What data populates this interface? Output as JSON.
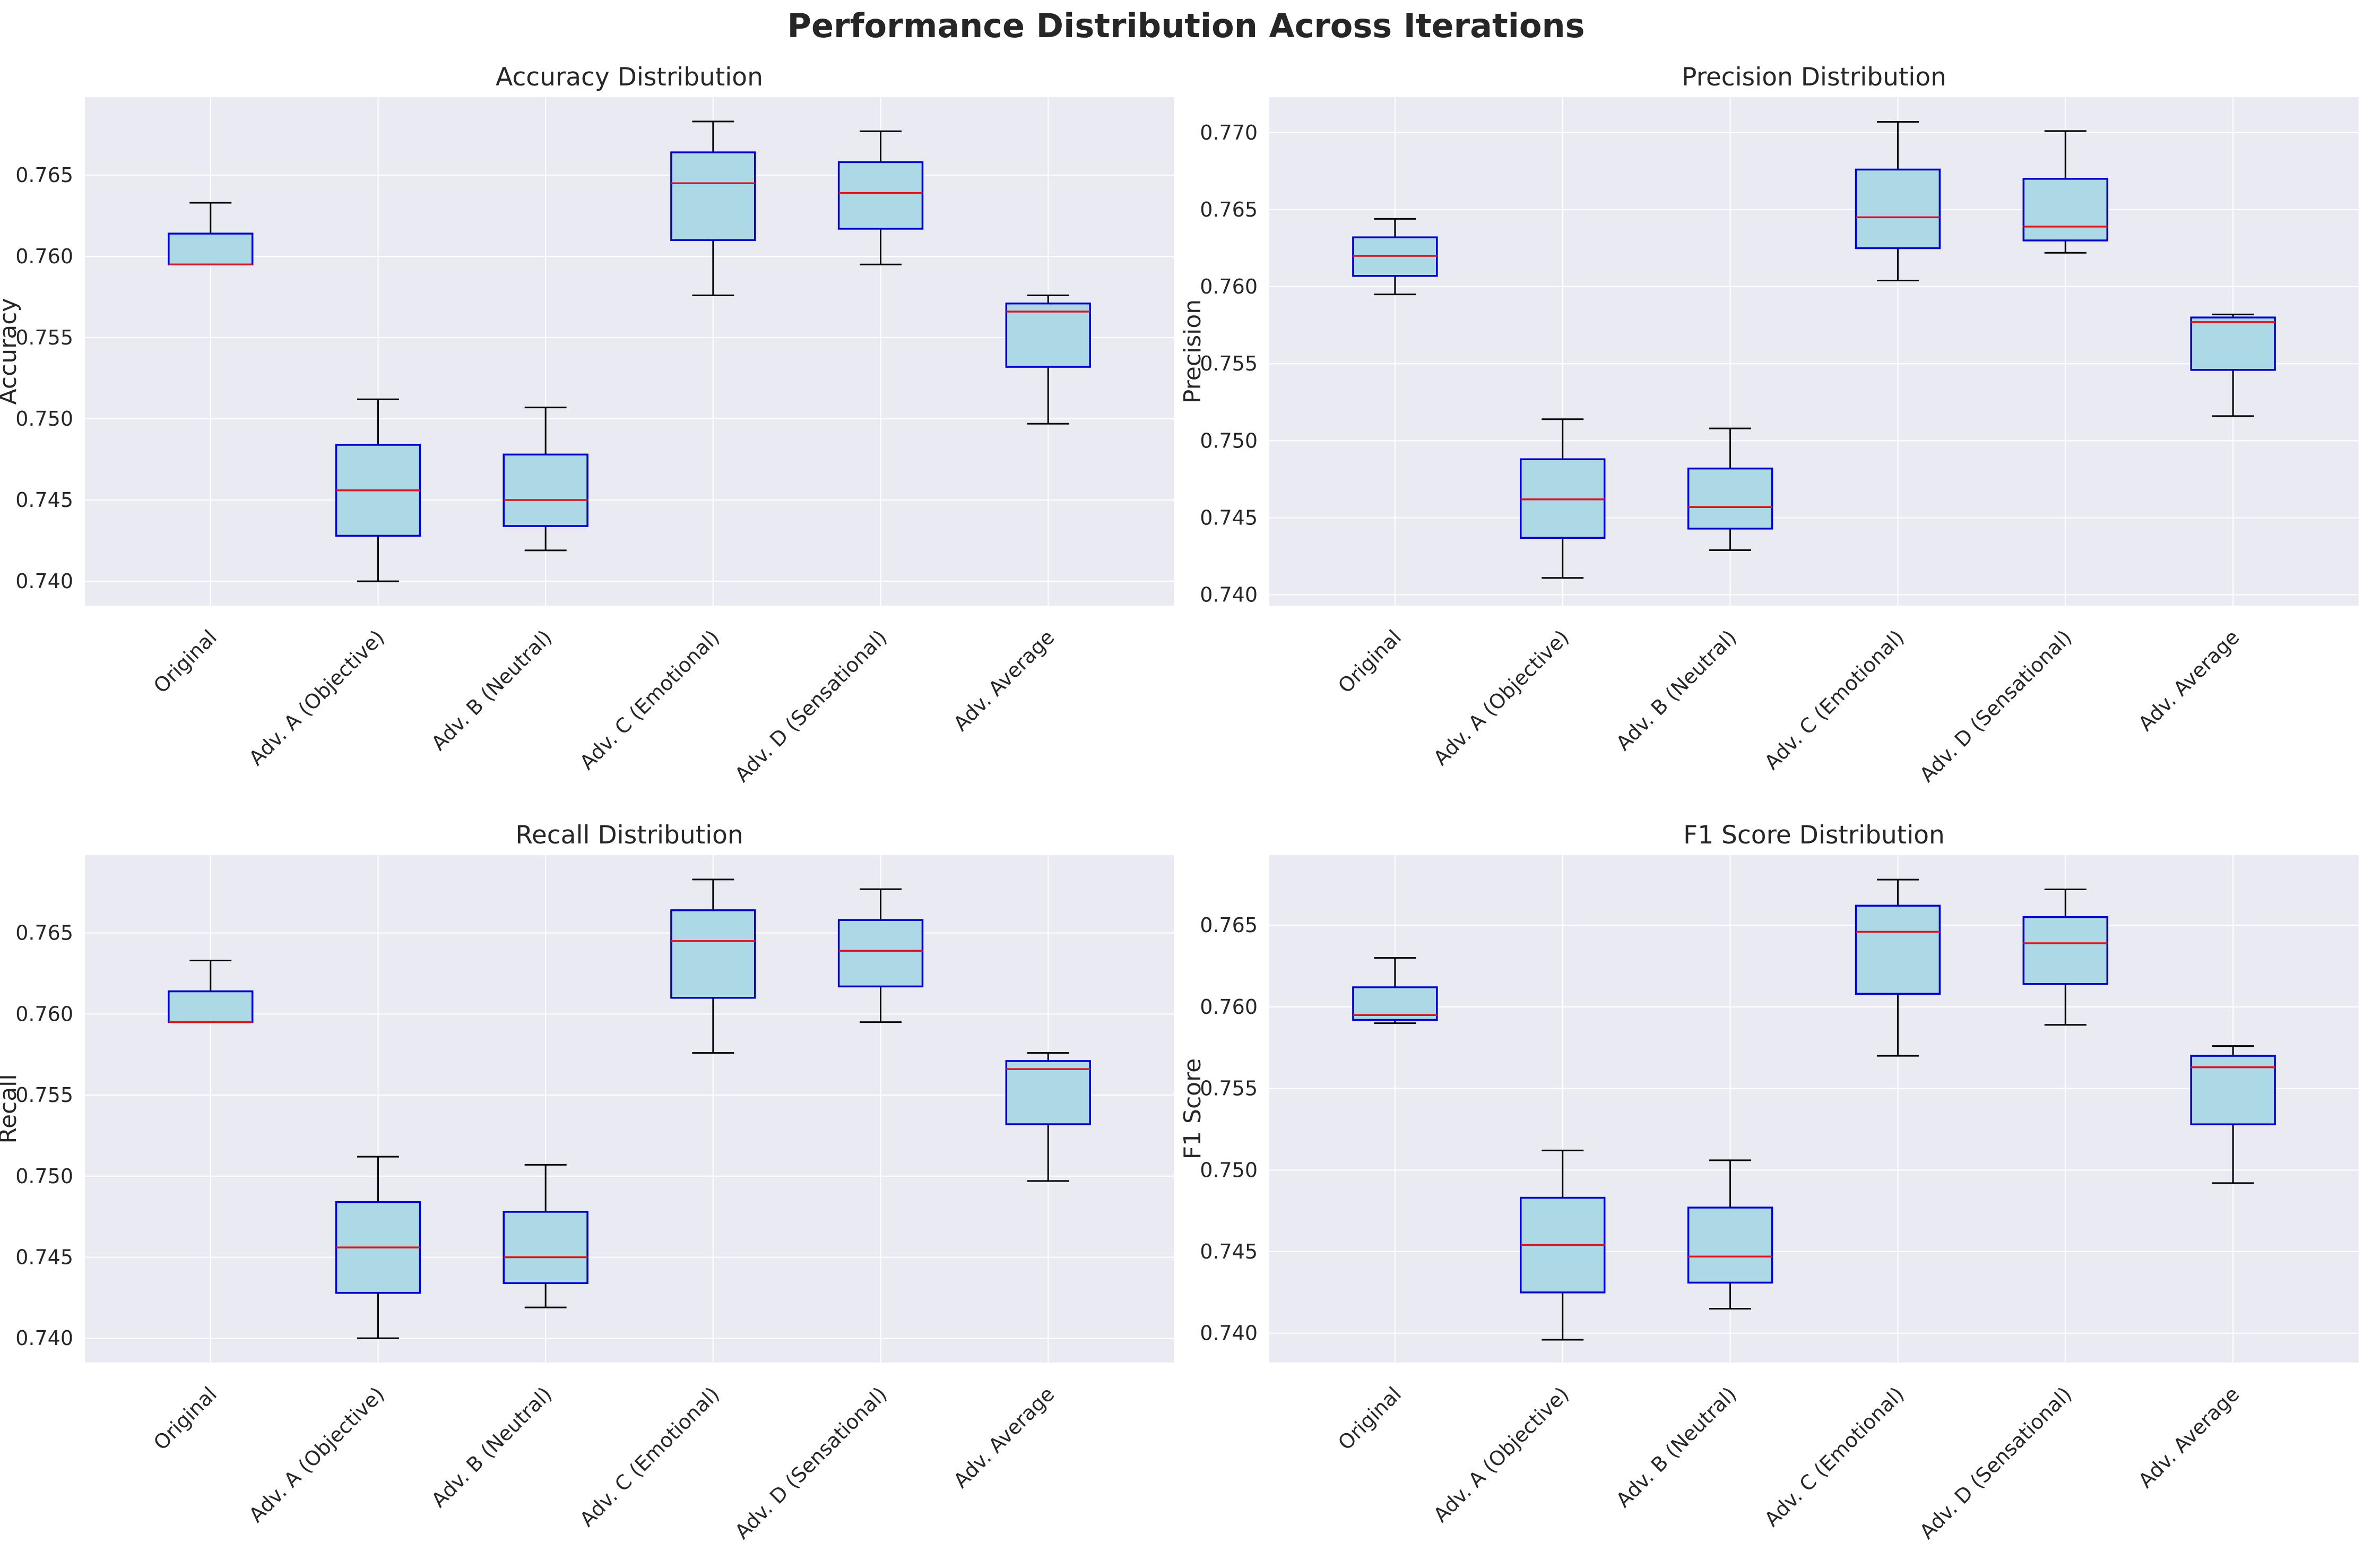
{
  "title": "Performance Distribution Across Iterations",
  "colors": {
    "panel_bg": "#eaeaf2",
    "grid": "#ffffff",
    "box_fill": "#add8e6",
    "box_edge": "#0000cd",
    "median": "#e0141e",
    "whisker": "#000000"
  },
  "chart_data": [
    {
      "type": "box",
      "title": "Accuracy Distribution",
      "ylabel": "Accuracy",
      "ylim": [
        0.7385,
        0.7698
      ],
      "yticks": [
        "0.740",
        "0.745",
        "0.750",
        "0.755",
        "0.760",
        "0.765"
      ],
      "categories": [
        "Original",
        "Adv. A (Objective)",
        "Adv. B (Neutral)",
        "Adv. C (Emotional)",
        "Adv. D (Sensational)",
        "Adv. Average"
      ],
      "boxes": [
        {
          "min": 0.7595,
          "q1": 0.7595,
          "median": 0.7595,
          "q3": 0.7614,
          "max": 0.7633
        },
        {
          "min": 0.74,
          "q1": 0.7428,
          "median": 0.7456,
          "q3": 0.7484,
          "max": 0.7512
        },
        {
          "min": 0.7419,
          "q1": 0.7434,
          "median": 0.745,
          "q3": 0.7478,
          "max": 0.7507
        },
        {
          "min": 0.7576,
          "q1": 0.761,
          "median": 0.7645,
          "q3": 0.7664,
          "max": 0.7683
        },
        {
          "min": 0.7595,
          "q1": 0.7617,
          "median": 0.7639,
          "q3": 0.7658,
          "max": 0.7677
        },
        {
          "min": 0.7497,
          "q1": 0.7532,
          "median": 0.7566,
          "q3": 0.7571,
          "max": 0.7576
        }
      ]
    },
    {
      "type": "box",
      "title": "Precision Distribution",
      "ylabel": "Precision",
      "ylim": [
        0.7393,
        0.7723
      ],
      "yticks": [
        "0.740",
        "0.745",
        "0.750",
        "0.755",
        "0.760",
        "0.765",
        "0.770"
      ],
      "categories": [
        "Original",
        "Adv. A (Objective)",
        "Adv. B (Neutral)",
        "Adv. C (Emotional)",
        "Adv. D (Sensational)",
        "Adv. Average"
      ],
      "boxes": [
        {
          "min": 0.7595,
          "q1": 0.7607,
          "median": 0.762,
          "q3": 0.7632,
          "max": 0.7644
        },
        {
          "min": 0.7411,
          "q1": 0.7437,
          "median": 0.7462,
          "q3": 0.7488,
          "max": 0.7514
        },
        {
          "min": 0.7429,
          "q1": 0.7443,
          "median": 0.7457,
          "q3": 0.7482,
          "max": 0.7508
        },
        {
          "min": 0.7604,
          "q1": 0.7625,
          "median": 0.7645,
          "q3": 0.7676,
          "max": 0.7707
        },
        {
          "min": 0.7622,
          "q1": 0.763,
          "median": 0.7639,
          "q3": 0.767,
          "max": 0.7701
        },
        {
          "min": 0.7516,
          "q1": 0.7546,
          "median": 0.7577,
          "q3": 0.758,
          "max": 0.7582
        }
      ]
    },
    {
      "type": "box",
      "title": "Recall Distribution",
      "ylabel": "Recall",
      "ylim": [
        0.7385,
        0.7698
      ],
      "yticks": [
        "0.740",
        "0.745",
        "0.750",
        "0.755",
        "0.760",
        "0.765"
      ],
      "categories": [
        "Original",
        "Adv. A (Objective)",
        "Adv. B (Neutral)",
        "Adv. C (Emotional)",
        "Adv. D (Sensational)",
        "Adv. Average"
      ],
      "boxes": [
        {
          "min": 0.7595,
          "q1": 0.7595,
          "median": 0.7595,
          "q3": 0.7614,
          "max": 0.7633
        },
        {
          "min": 0.74,
          "q1": 0.7428,
          "median": 0.7456,
          "q3": 0.7484,
          "max": 0.7512
        },
        {
          "min": 0.7419,
          "q1": 0.7434,
          "median": 0.745,
          "q3": 0.7478,
          "max": 0.7507
        },
        {
          "min": 0.7576,
          "q1": 0.761,
          "median": 0.7645,
          "q3": 0.7664,
          "max": 0.7683
        },
        {
          "min": 0.7595,
          "q1": 0.7617,
          "median": 0.7639,
          "q3": 0.7658,
          "max": 0.7677
        },
        {
          "min": 0.7497,
          "q1": 0.7532,
          "median": 0.7566,
          "q3": 0.7571,
          "max": 0.7576
        }
      ]
    },
    {
      "type": "box",
      "title": "F1 Score Distribution",
      "ylabel": "F1 Score",
      "ylim": [
        0.7382,
        0.7693
      ],
      "yticks": [
        "0.740",
        "0.745",
        "0.750",
        "0.755",
        "0.760",
        "0.765"
      ],
      "categories": [
        "Original",
        "Adv. A (Objective)",
        "Adv. B (Neutral)",
        "Adv. C (Emotional)",
        "Adv. D (Sensational)",
        "Adv. Average"
      ],
      "boxes": [
        {
          "min": 0.759,
          "q1": 0.7592,
          "median": 0.7595,
          "q3": 0.7612,
          "max": 0.763
        },
        {
          "min": 0.7396,
          "q1": 0.7425,
          "median": 0.7454,
          "q3": 0.7483,
          "max": 0.7512
        },
        {
          "min": 0.7415,
          "q1": 0.7431,
          "median": 0.7447,
          "q3": 0.7477,
          "max": 0.7506
        },
        {
          "min": 0.757,
          "q1": 0.7608,
          "median": 0.7646,
          "q3": 0.7662,
          "max": 0.7678
        },
        {
          "min": 0.7589,
          "q1": 0.7614,
          "median": 0.7639,
          "q3": 0.7655,
          "max": 0.7672
        },
        {
          "min": 0.7492,
          "q1": 0.7528,
          "median": 0.7563,
          "q3": 0.757,
          "max": 0.7576
        }
      ]
    }
  ]
}
